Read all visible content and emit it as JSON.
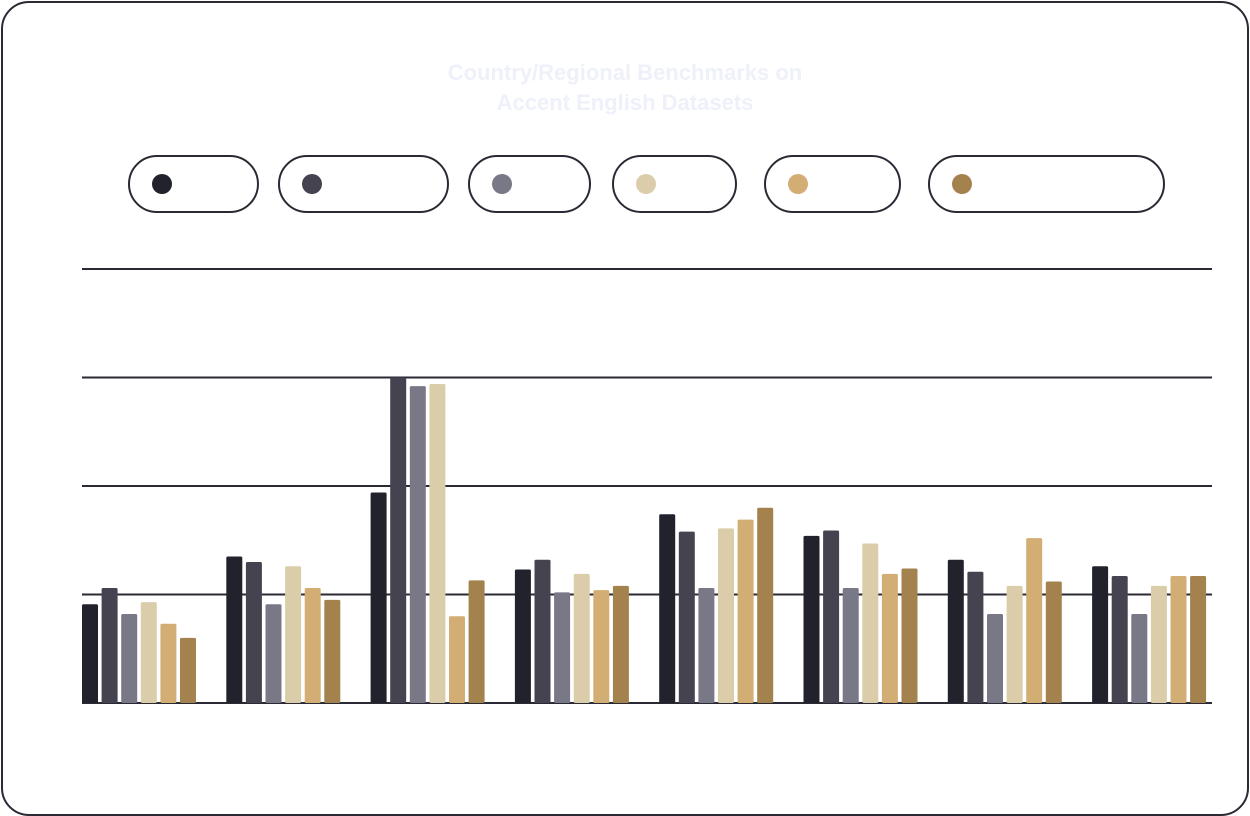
{
  "chart_data": {
    "type": "bar",
    "title_line1": "Country/Regional Benchmarks on",
    "title_line2": "Accent English Datasets",
    "xlabel": "",
    "ylabel": "",
    "ylim": [
      0,
      40
    ],
    "yticks": [
      0,
      10,
      20,
      30,
      40
    ],
    "grid": true,
    "legend_placement": "top",
    "categories": [
      "",
      "",
      "",
      "",
      "",
      "",
      "",
      ""
    ],
    "series": [
      {
        "name": "",
        "color": "#22222d",
        "values": [
          9.1,
          13.5,
          19.4,
          12.3,
          17.4,
          15.4,
          13.2,
          12.6
        ]
      },
      {
        "name": "",
        "color": "#44434f",
        "values": [
          10.6,
          13.0,
          30.0,
          13.2,
          15.8,
          15.9,
          12.1,
          11.7
        ]
      },
      {
        "name": "",
        "color": "#797886",
        "values": [
          8.2,
          9.1,
          29.2,
          10.2,
          10.6,
          10.6,
          8.2,
          8.2
        ]
      },
      {
        "name": "",
        "color": "#dbcdaa",
        "values": [
          9.3,
          12.6,
          29.4,
          11.9,
          16.1,
          14.7,
          10.8,
          10.8
        ]
      },
      {
        "name": "",
        "color": "#d3ae74",
        "values": [
          7.3,
          10.6,
          8.0,
          10.4,
          16.9,
          11.9,
          15.2,
          11.7
        ]
      },
      {
        "name": "",
        "color": "#a3824d",
        "values": [
          6.0,
          9.5,
          11.3,
          10.8,
          18.0,
          12.4,
          11.2,
          11.7
        ]
      }
    ]
  }
}
